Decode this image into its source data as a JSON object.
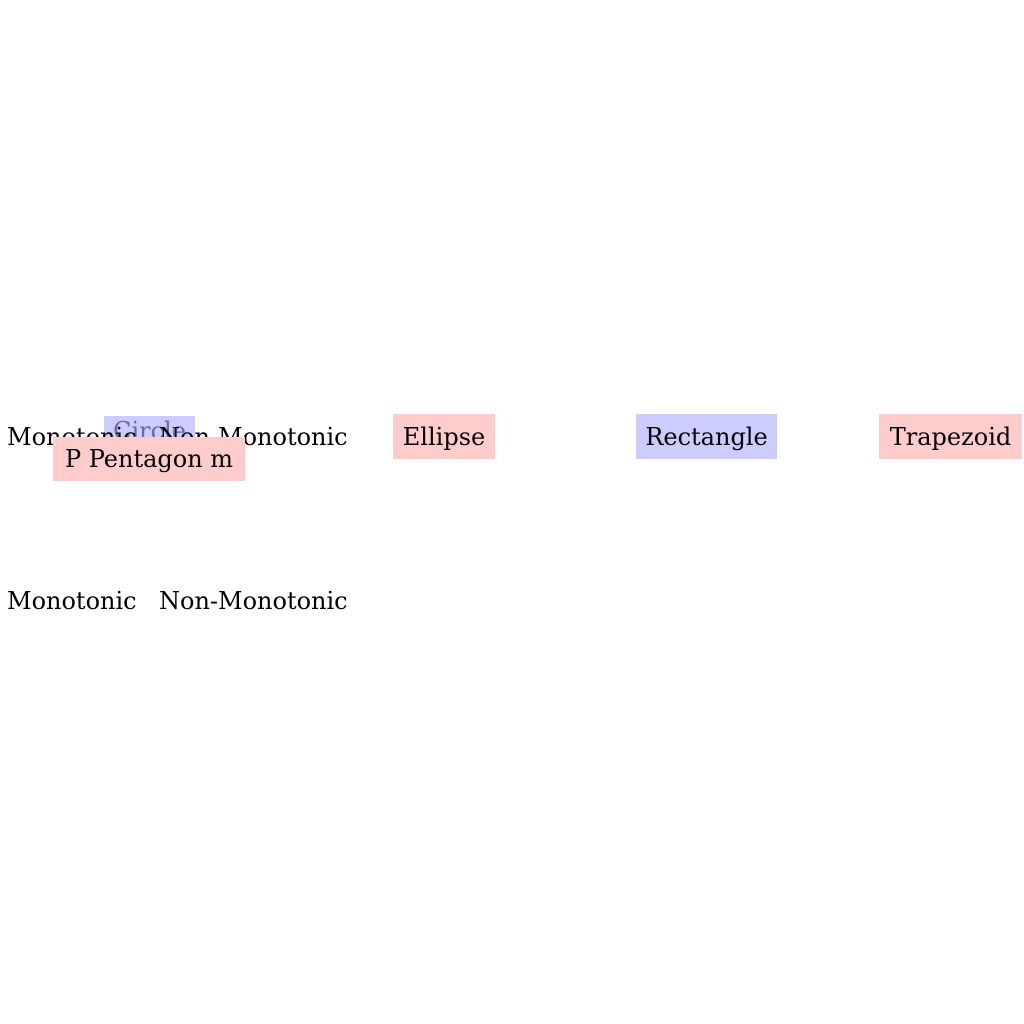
{
  "colors": {
    "blue_fill": "#ccccff",
    "red_fill": "#ffcccc"
  },
  "row1": {
    "monotonic": "Monotonic",
    "hidden_box": "Circle",
    "non_monotonic": "Non-Monotonic",
    "overlap_box": "P Pentagon m"
  },
  "nodes": [
    {
      "label": "Ellipse",
      "color": "red"
    },
    {
      "label": "Rectangle",
      "color": "blue"
    },
    {
      "label": "Trapezoid",
      "color": "red"
    }
  ],
  "row2": {
    "monotonic": "Monotonic",
    "non_monotonic": "Non-Monotonic"
  }
}
